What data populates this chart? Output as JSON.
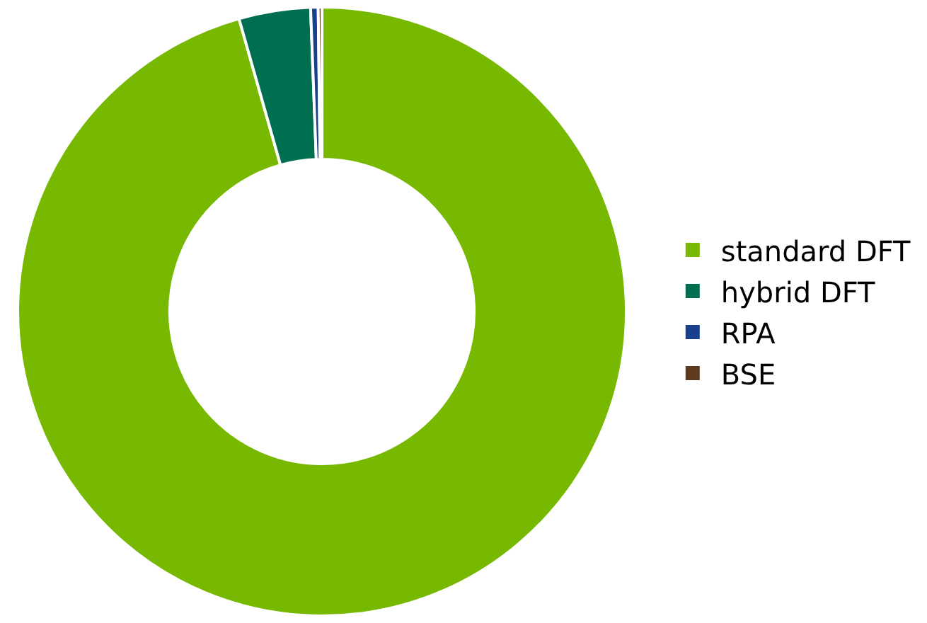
{
  "chart_data": {
    "type": "donut",
    "categories": [
      "standard DFT",
      "hybrid DFT",
      "RPA",
      "BSE"
    ],
    "values": [
      95.6,
      3.8,
      0.4,
      0.2
    ],
    "colors": [
      "#76b900",
      "#006e50",
      "#1a3f8c",
      "#5c3b1e"
    ],
    "legend": "right"
  }
}
